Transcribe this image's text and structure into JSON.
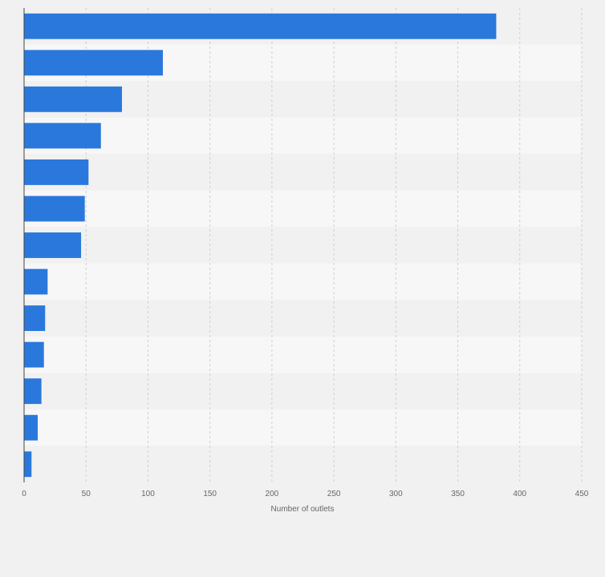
{
  "chart_data": {
    "type": "bar",
    "orientation": "horizontal",
    "categories": [
      "",
      "",
      "",
      "",
      "",
      "",
      "",
      "",
      "",
      "",
      "",
      "",
      ""
    ],
    "values": [
      381,
      112,
      79,
      62,
      52,
      49,
      46,
      19,
      17,
      16,
      14,
      11,
      6
    ],
    "title": "",
    "xlabel": "Number of outlets",
    "ylabel": "",
    "xlim": [
      0,
      450
    ],
    "x_ticks": [
      0,
      50,
      100,
      150,
      200,
      250,
      300,
      350,
      400,
      450
    ],
    "x_tick_labels": [
      "0",
      "50",
      "100",
      "150",
      "200",
      "250",
      "300",
      "350",
      "400",
      "450"
    ],
    "grid": "vertical dashed",
    "legend": "none",
    "bar_color": "#2a78dc"
  }
}
